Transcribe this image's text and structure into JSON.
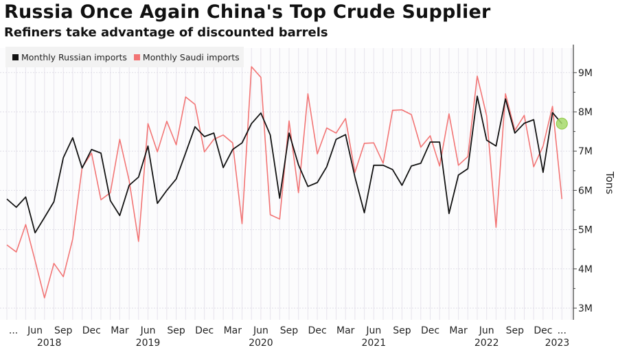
{
  "header": {
    "title": "Russia Once Again China's Top Crude Supplier",
    "subtitle": "Refiners take advantage of discounted barrels"
  },
  "chart_data": {
    "type": "line",
    "title": "Russia Once Again China's Top Crude Supplier",
    "subtitle": "Refiners take advantage of discounted barrels",
    "xlabel": "",
    "ylabel": "Tons",
    "x_start": "Mar 2018",
    "x_end": "Feb 2023",
    "ylim": [
      2.7,
      9.6
    ],
    "y_ticks": [
      {
        "value": 9,
        "label": "9M"
      },
      {
        "value": 8,
        "label": "8M"
      },
      {
        "value": 7,
        "label": "7M"
      },
      {
        "value": 6,
        "label": "6M"
      },
      {
        "value": 5,
        "label": "5M"
      },
      {
        "value": 4,
        "label": "4M"
      },
      {
        "value": 3,
        "label": "3M"
      }
    ],
    "x_ticks": [
      {
        "m": 0.7,
        "label": "..."
      },
      {
        "m": 3,
        "label": "Jun"
      },
      {
        "m": 6,
        "label": "Sep"
      },
      {
        "m": 9,
        "label": "Dec"
      },
      {
        "m": 12,
        "label": "Mar"
      },
      {
        "m": 15,
        "label": "Jun"
      },
      {
        "m": 18,
        "label": "Sep"
      },
      {
        "m": 21,
        "label": "Dec"
      },
      {
        "m": 24,
        "label": "Mar"
      },
      {
        "m": 27,
        "label": "Jun"
      },
      {
        "m": 30,
        "label": "Sep"
      },
      {
        "m": 33,
        "label": "Dec"
      },
      {
        "m": 36,
        "label": "Mar"
      },
      {
        "m": 39,
        "label": "Jun"
      },
      {
        "m": 42,
        "label": "Sep"
      },
      {
        "m": 45,
        "label": "Dec"
      },
      {
        "m": 48,
        "label": "Mar"
      },
      {
        "m": 51,
        "label": "Jun"
      },
      {
        "m": 54,
        "label": "Sep"
      },
      {
        "m": 57,
        "label": "Dec"
      },
      {
        "m": 59,
        "label": "..."
      }
    ],
    "year_labels": [
      {
        "m": 4.5,
        "label": "2018"
      },
      {
        "m": 15,
        "label": "2019"
      },
      {
        "m": 27,
        "label": "2020"
      },
      {
        "m": 39,
        "label": "2021"
      },
      {
        "m": 51,
        "label": "2022"
      },
      {
        "m": 58.5,
        "label": "2023"
      }
    ],
    "grid": true,
    "legend_position": "top-left",
    "series": [
      {
        "name": "Monthly Russian imports",
        "color": "#111111",
        "values": [
          5.78,
          5.57,
          5.83,
          4.92,
          5.31,
          5.71,
          6.83,
          7.34,
          6.57,
          7.04,
          6.95,
          5.74,
          5.36,
          6.13,
          6.34,
          7.13,
          5.67,
          6.0,
          6.29,
          6.95,
          7.62,
          7.37,
          7.46,
          6.58,
          7.04,
          7.21,
          7.7,
          7.97,
          7.41,
          5.8,
          7.46,
          6.65,
          6.1,
          6.2,
          6.6,
          7.3,
          7.42,
          6.34,
          5.43,
          6.64,
          6.64,
          6.53,
          6.13,
          6.62,
          6.69,
          7.23,
          7.23,
          5.41,
          6.39,
          6.55,
          8.4,
          7.28,
          7.13,
          8.33,
          7.46,
          7.71,
          7.8,
          6.46,
          7.98,
          7.7
        ]
      },
      {
        "name": "Monthly Saudi imports",
        "color": "#f27474",
        "values": [
          4.61,
          4.43,
          5.13,
          4.21,
          3.26,
          4.14,
          3.8,
          4.76,
          6.58,
          6.95,
          5.76,
          5.94,
          7.3,
          6.25,
          4.7,
          7.7,
          6.98,
          7.76,
          7.16,
          8.38,
          8.19,
          6.98,
          7.3,
          7.41,
          7.21,
          5.15,
          9.15,
          8.88,
          5.38,
          5.27,
          7.77,
          5.94,
          8.46,
          6.93,
          7.59,
          7.46,
          7.83,
          6.46,
          7.2,
          7.21,
          6.69,
          8.04,
          8.05,
          7.93,
          7.1,
          7.39,
          6.62,
          7.95,
          6.64,
          6.86,
          8.91,
          7.9,
          5.06,
          8.46,
          7.53,
          7.91,
          6.6,
          7.13,
          8.14,
          5.78
        ]
      }
    ],
    "highlight": {
      "series": "Monthly Russian imports",
      "index": 59,
      "color": "#a6d96a"
    }
  }
}
